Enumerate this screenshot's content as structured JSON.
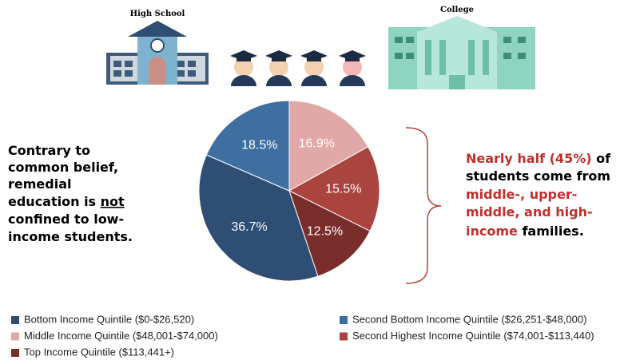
{
  "header": {
    "left_label": "High School",
    "right_label": "College"
  },
  "left_note": {
    "lines": [
      [
        "Contrary to"
      ],
      [
        "common belief,"
      ],
      [
        "remedial"
      ],
      [
        "education is ",
        "not"
      ],
      [
        "confined to low-"
      ],
      [
        "income students."
      ]
    ]
  },
  "right_note": {
    "lines": [
      [
        "Nearly half (45%)",
        " of"
      ],
      [
        "students come from"
      ],
      [
        "middle-, upper-"
      ],
      [
        "middle, and high-"
      ],
      [
        "income",
        " families."
      ]
    ]
  },
  "chart_data": {
    "type": "pie",
    "categories": [
      "Bottom Income Quintile ($0-$26,520)",
      "Second Bottom Income Quintile ($26,251-$48,000)",
      "Middle Income Quintile ($48,001-$74,000)",
      "Second Highest Income Quintile ($74,001-$113,440)",
      "Top Income Quintile ($113,441+)"
    ],
    "values": [
      36.7,
      18.5,
      16.9,
      15.5,
      12.5
    ],
    "value_labels": [
      "36.7%",
      "18.5%",
      "16.9%",
      "15.5%",
      "12.5%"
    ],
    "colors": [
      "#2f4e74",
      "#3e6fa0",
      "#e0a8a6",
      "#a9443f",
      "#7a2e2c"
    ]
  }
}
